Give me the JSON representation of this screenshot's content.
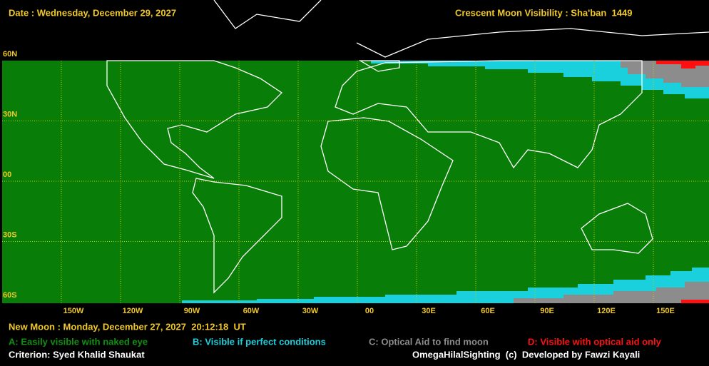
{
  "header": {
    "date": "Date : Wednesday, December 29, 2027",
    "title": "Crescent Moon Visibility : Sha'ban  1449"
  },
  "map": {
    "lat_labels": [
      "60N",
      "30N",
      "00",
      "30S",
      "60S"
    ],
    "lon_labels": [
      "150W",
      "120W",
      "90W",
      "60W",
      "30W",
      "00",
      "30E",
      "60E",
      "90E",
      "120E",
      "150E"
    ]
  },
  "footer": {
    "new_moon": "New Moon : Monday, December 27, 2027  20:12:18  UT",
    "legend": [
      "A: Easily visible with naked eye",
      "B: Visible if perfect conditions",
      "C: Optical Aid to find moon",
      "D: Visible with optical aid only"
    ],
    "criterion": "Criterion: Syed Khalid Shaukat",
    "credit": "OmegaHilalSighting  (c)  Developed by Fawzi Kayali"
  }
}
